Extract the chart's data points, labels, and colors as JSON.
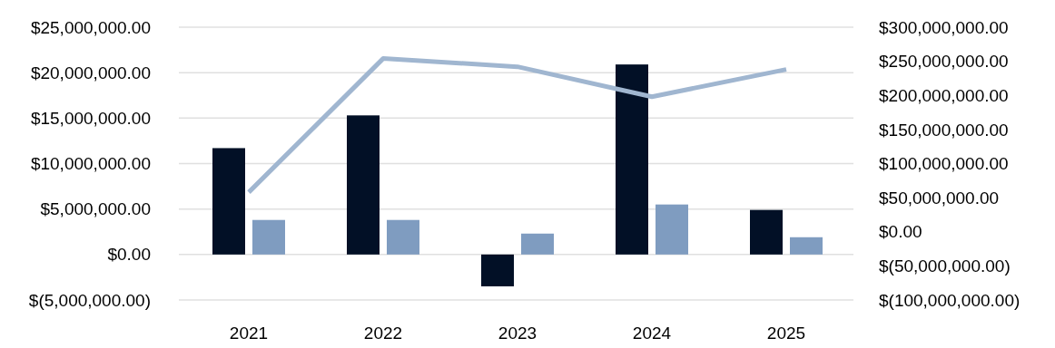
{
  "chart_data": {
    "type": "bar",
    "categories": [
      "2021",
      "2022",
      "2023",
      "2024",
      "2025"
    ],
    "series": [
      {
        "color": "#021026",
        "values": [
          11700000,
          15300000,
          -3500000,
          20900000,
          4900000
        ]
      },
      {
        "color": "#7f9cc0",
        "values": [
          3800000,
          3800000,
          2300000,
          5500000,
          1900000
        ]
      },
      {
        "type": "line",
        "axis": "y2",
        "color": "#a0b6d0",
        "values": [
          58000000,
          254000000,
          242000000,
          198000000,
          238000000
        ]
      }
    ],
    "ylim": [
      -5000000,
      25000000
    ],
    "yticks": [
      {
        "value": -5000000,
        "label": "$(5,000,000.00)"
      },
      {
        "value": 0,
        "label": "$0.00"
      },
      {
        "value": 5000000,
        "label": "$5,000,000.00"
      },
      {
        "value": 10000000,
        "label": "$10,000,000.00"
      },
      {
        "value": 15000000,
        "label": "$15,000,000.00"
      },
      {
        "value": 20000000,
        "label": "$20,000,000.00"
      },
      {
        "value": 25000000,
        "label": "$25,000,000.00"
      }
    ],
    "y2lim": [
      -100000000,
      300000000
    ],
    "y2ticks": [
      {
        "value": -100000000,
        "label": "$(100,000,000.00)"
      },
      {
        "value": -50000000,
        "label": "$(50,000,000.00)"
      },
      {
        "value": 0,
        "label": "$0.00"
      },
      {
        "value": 50000000,
        "label": "$50,000,000.00"
      },
      {
        "value": 100000000,
        "label": "$100,000,000.00"
      },
      {
        "value": 150000000,
        "label": "$150,000,000.00"
      },
      {
        "value": 200000000,
        "label": "$200,000,000.00"
      },
      {
        "value": 250000000,
        "label": "$250,000,000.00"
      },
      {
        "value": 300000000,
        "label": "$300,000,000.00"
      }
    ],
    "grid": "y",
    "marker": "none",
    "line_style": "solid"
  }
}
